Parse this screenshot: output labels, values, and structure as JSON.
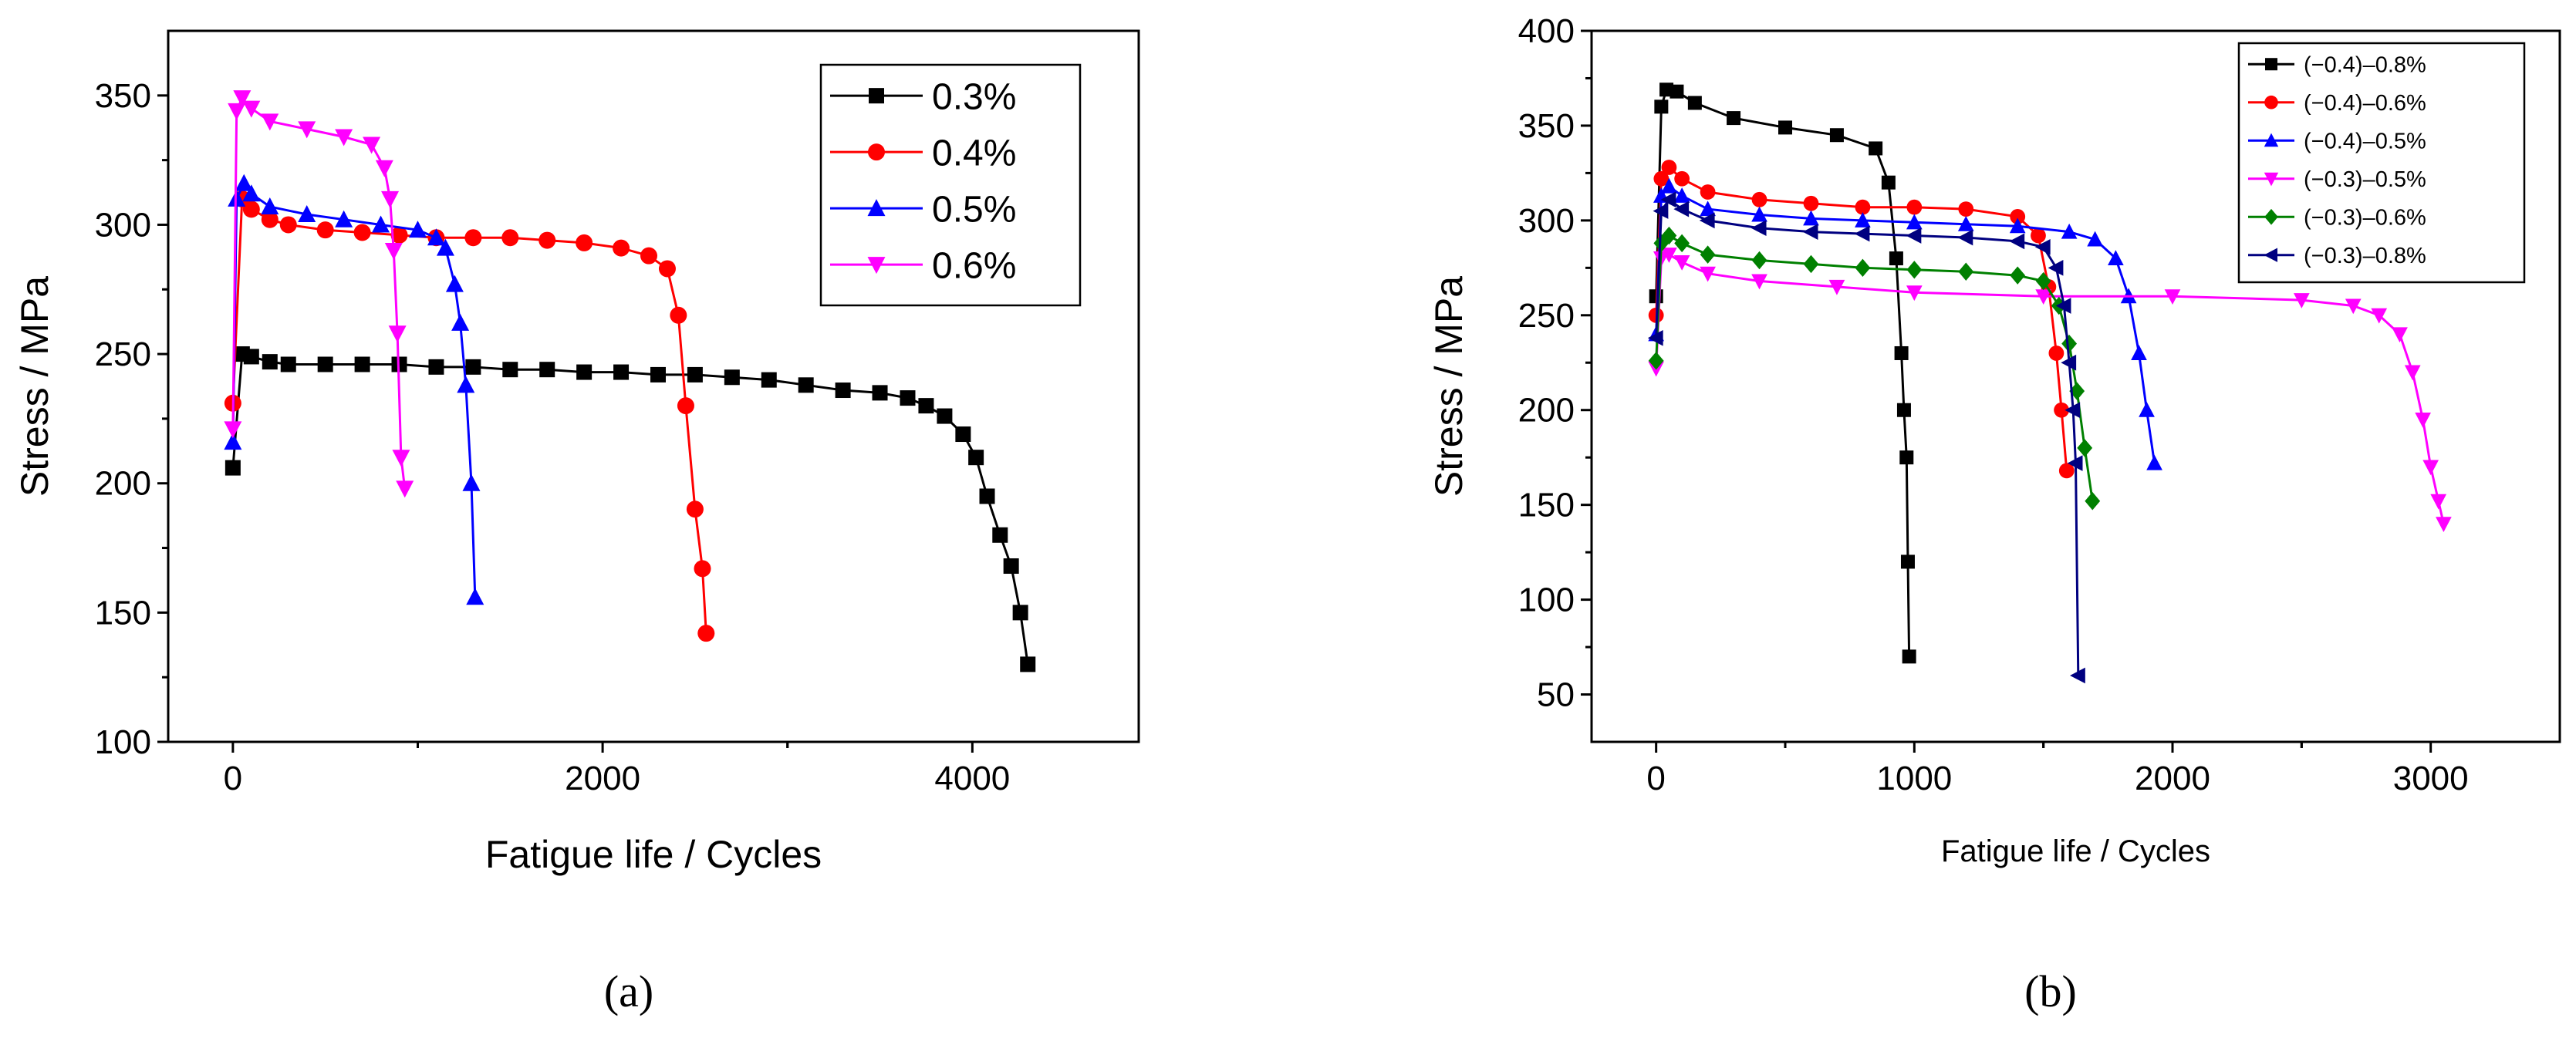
{
  "chart_data": [
    {
      "type": "line",
      "panel_label": "(a)",
      "xlabel": "Fatigue life / Cycles",
      "ylabel": "Stress / MPa",
      "xlim": [
        -350,
        4900
      ],
      "ylim": [
        100,
        375
      ],
      "xticks": [
        0,
        2000,
        4000
      ],
      "yticks": [
        100,
        150,
        200,
        250,
        300,
        350
      ],
      "legend_position": "top-right",
      "series": [
        {
          "name": "0.3%",
          "color": "#000000",
          "marker": "square",
          "x": [
            0,
            50,
            100,
            200,
            300,
            500,
            700,
            900,
            1100,
            1300,
            1500,
            1700,
            1900,
            2100,
            2300,
            2500,
            2700,
            2900,
            3100,
            3300,
            3500,
            3650,
            3750,
            3850,
            3950,
            4020,
            4080,
            4150,
            4210,
            4260,
            4300
          ],
          "y": [
            206,
            250,
            249,
            247,
            246,
            246,
            246,
            246,
            245,
            245,
            244,
            244,
            243,
            243,
            242,
            242,
            241,
            240,
            238,
            236,
            235,
            233,
            230,
            226,
            219,
            210,
            195,
            180,
            168,
            150,
            130
          ]
        },
        {
          "name": "0.4%",
          "color": "#ff0000",
          "marker": "circle",
          "x": [
            0,
            50,
            100,
            200,
            300,
            500,
            700,
            900,
            1100,
            1300,
            1500,
            1700,
            1900,
            2100,
            2250,
            2350,
            2410,
            2450,
            2500,
            2540,
            2560
          ],
          "y": [
            231,
            310,
            306,
            302,
            300,
            298,
            297,
            296,
            295,
            295,
            295,
            294,
            293,
            291,
            288,
            283,
            265,
            230,
            190,
            167,
            142
          ]
        },
        {
          "name": "0.5%",
          "color": "#0000ff",
          "marker": "triangle-up",
          "x": [
            0,
            20,
            60,
            100,
            200,
            400,
            600,
            800,
            1000,
            1100,
            1150,
            1200,
            1230,
            1260,
            1290,
            1310
          ],
          "y": [
            216,
            310,
            316,
            312,
            307,
            304,
            302,
            300,
            298,
            295,
            291,
            277,
            262,
            238,
            200,
            156
          ]
        },
        {
          "name": "0.6%",
          "color": "#ff00ff",
          "marker": "triangle-down",
          "x": [
            0,
            20,
            50,
            100,
            200,
            400,
            600,
            750,
            820,
            850,
            870,
            890,
            910,
            930
          ],
          "y": [
            221,
            344,
            349,
            345,
            340,
            337,
            334,
            331,
            322,
            310,
            290,
            258,
            210,
            198
          ]
        }
      ]
    },
    {
      "type": "line",
      "panel_label": "(b)",
      "xlabel": "Fatigue life / Cycles",
      "ylabel": "Stress / MPa",
      "xlim": [
        -250,
        3500
      ],
      "ylim": [
        25,
        400
      ],
      "xticks": [
        0,
        1000,
        2000,
        3000
      ],
      "yticks": [
        50,
        100,
        150,
        200,
        250,
        300,
        350,
        400
      ],
      "legend_position": "top-right",
      "series": [
        {
          "name": "(−0.4)–0.8%",
          "color": "#000000",
          "marker": "square",
          "x": [
            0,
            20,
            40,
            80,
            150,
            300,
            500,
            700,
            850,
            900,
            930,
            950,
            960,
            970,
            975,
            980
          ],
          "y": [
            260,
            360,
            369,
            368,
            362,
            354,
            349,
            345,
            338,
            320,
            280,
            230,
            200,
            175,
            120,
            70
          ]
        },
        {
          "name": "(−0.4)–0.6%",
          "color": "#ff0000",
          "marker": "circle",
          "x": [
            0,
            20,
            50,
            100,
            200,
            400,
            600,
            800,
            1000,
            1200,
            1400,
            1480,
            1520,
            1550,
            1570,
            1590
          ],
          "y": [
            250,
            322,
            328,
            322,
            315,
            311,
            309,
            307,
            307,
            306,
            302,
            292,
            265,
            230,
            200,
            168
          ]
        },
        {
          "name": "(−0.4)–0.5%",
          "color": "#0000ff",
          "marker": "triangle-up",
          "x": [
            0,
            20,
            50,
            100,
            200,
            400,
            600,
            800,
            1000,
            1200,
            1400,
            1600,
            1700,
            1780,
            1830,
            1870,
            1900,
            1930
          ],
          "y": [
            240,
            313,
            318,
            313,
            306,
            303,
            301,
            300,
            299,
            298,
            297,
            294,
            290,
            280,
            260,
            230,
            200,
            172
          ]
        },
        {
          "name": "(−0.3)–0.5%",
          "color": "#ff00ff",
          "marker": "triangle-down",
          "x": [
            0,
            20,
            50,
            100,
            200,
            400,
            700,
            1000,
            1500,
            2000,
            2500,
            2700,
            2800,
            2880,
            2930,
            2970,
            3000,
            3030,
            3050
          ],
          "y": [
            222,
            280,
            282,
            278,
            272,
            268,
            265,
            262,
            260,
            260,
            258,
            255,
            250,
            240,
            220,
            195,
            170,
            152,
            140
          ]
        },
        {
          "name": "(−0.3)–0.6%",
          "color": "#008000",
          "marker": "diamond",
          "x": [
            0,
            20,
            50,
            100,
            200,
            400,
            600,
            800,
            1000,
            1200,
            1400,
            1500,
            1560,
            1600,
            1630,
            1660,
            1690
          ],
          "y": [
            226,
            288,
            292,
            288,
            282,
            279,
            277,
            275,
            274,
            273,
            271,
            268,
            255,
            235,
            210,
            180,
            152
          ]
        },
        {
          "name": "(−0.3)–0.8%",
          "color": "#000080",
          "marker": "triangle-left",
          "x": [
            0,
            20,
            50,
            100,
            200,
            400,
            600,
            800,
            1000,
            1200,
            1400,
            1500,
            1550,
            1580,
            1600,
            1615,
            1625,
            1635
          ],
          "y": [
            238,
            305,
            311,
            306,
            300,
            296,
            294,
            293,
            292,
            291,
            289,
            286,
            275,
            255,
            225,
            200,
            172,
            60
          ]
        }
      ]
    }
  ]
}
